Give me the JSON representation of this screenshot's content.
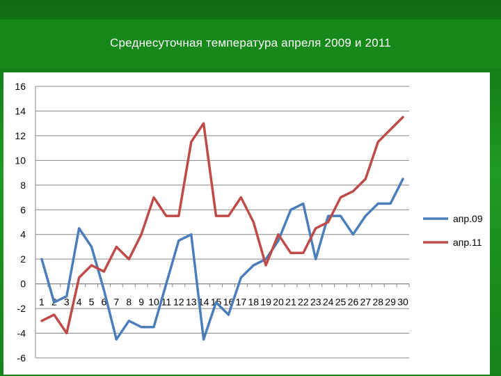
{
  "slide": {
    "title": "Среднесуточная температура апреля 2009 и 2011"
  },
  "chart_data": {
    "type": "line",
    "title": "",
    "xlabel": "",
    "ylabel": "",
    "x": [
      1,
      2,
      3,
      4,
      5,
      6,
      7,
      8,
      9,
      10,
      11,
      12,
      13,
      14,
      15,
      16,
      17,
      18,
      19,
      20,
      21,
      22,
      23,
      24,
      25,
      26,
      27,
      28,
      29,
      30
    ],
    "ylim": [
      -6,
      16
    ],
    "yticks": [
      16,
      14,
      12,
      10,
      8,
      6,
      4,
      2,
      0,
      -2,
      -4,
      -6
    ],
    "grid": "horizontal",
    "legend": "right",
    "series": [
      {
        "name": "апр.09",
        "color": "#4a7ebb",
        "values": [
          2,
          -1.5,
          -1,
          4.5,
          3,
          -0.5,
          -4.5,
          -3,
          -3.5,
          -3.5,
          0,
          3.5,
          4,
          -4.5,
          -1.5,
          -2.5,
          0.5,
          1.5,
          2,
          3.5,
          6,
          6.5,
          2,
          5.5,
          5.5,
          4,
          5.5,
          6.5,
          6.5,
          8.5
        ]
      },
      {
        "name": "апр.11",
        "color": "#be4b48",
        "values": [
          -3,
          -2.5,
          -4,
          0.5,
          1.5,
          1,
          3,
          2,
          4,
          7,
          5.5,
          5.5,
          11.5,
          13,
          5.5,
          5.5,
          7,
          5,
          1.5,
          4,
          2.5,
          2.5,
          4.5,
          5,
          7,
          7.5,
          8.5,
          11.5,
          12.5,
          13.5
        ]
      }
    ]
  }
}
